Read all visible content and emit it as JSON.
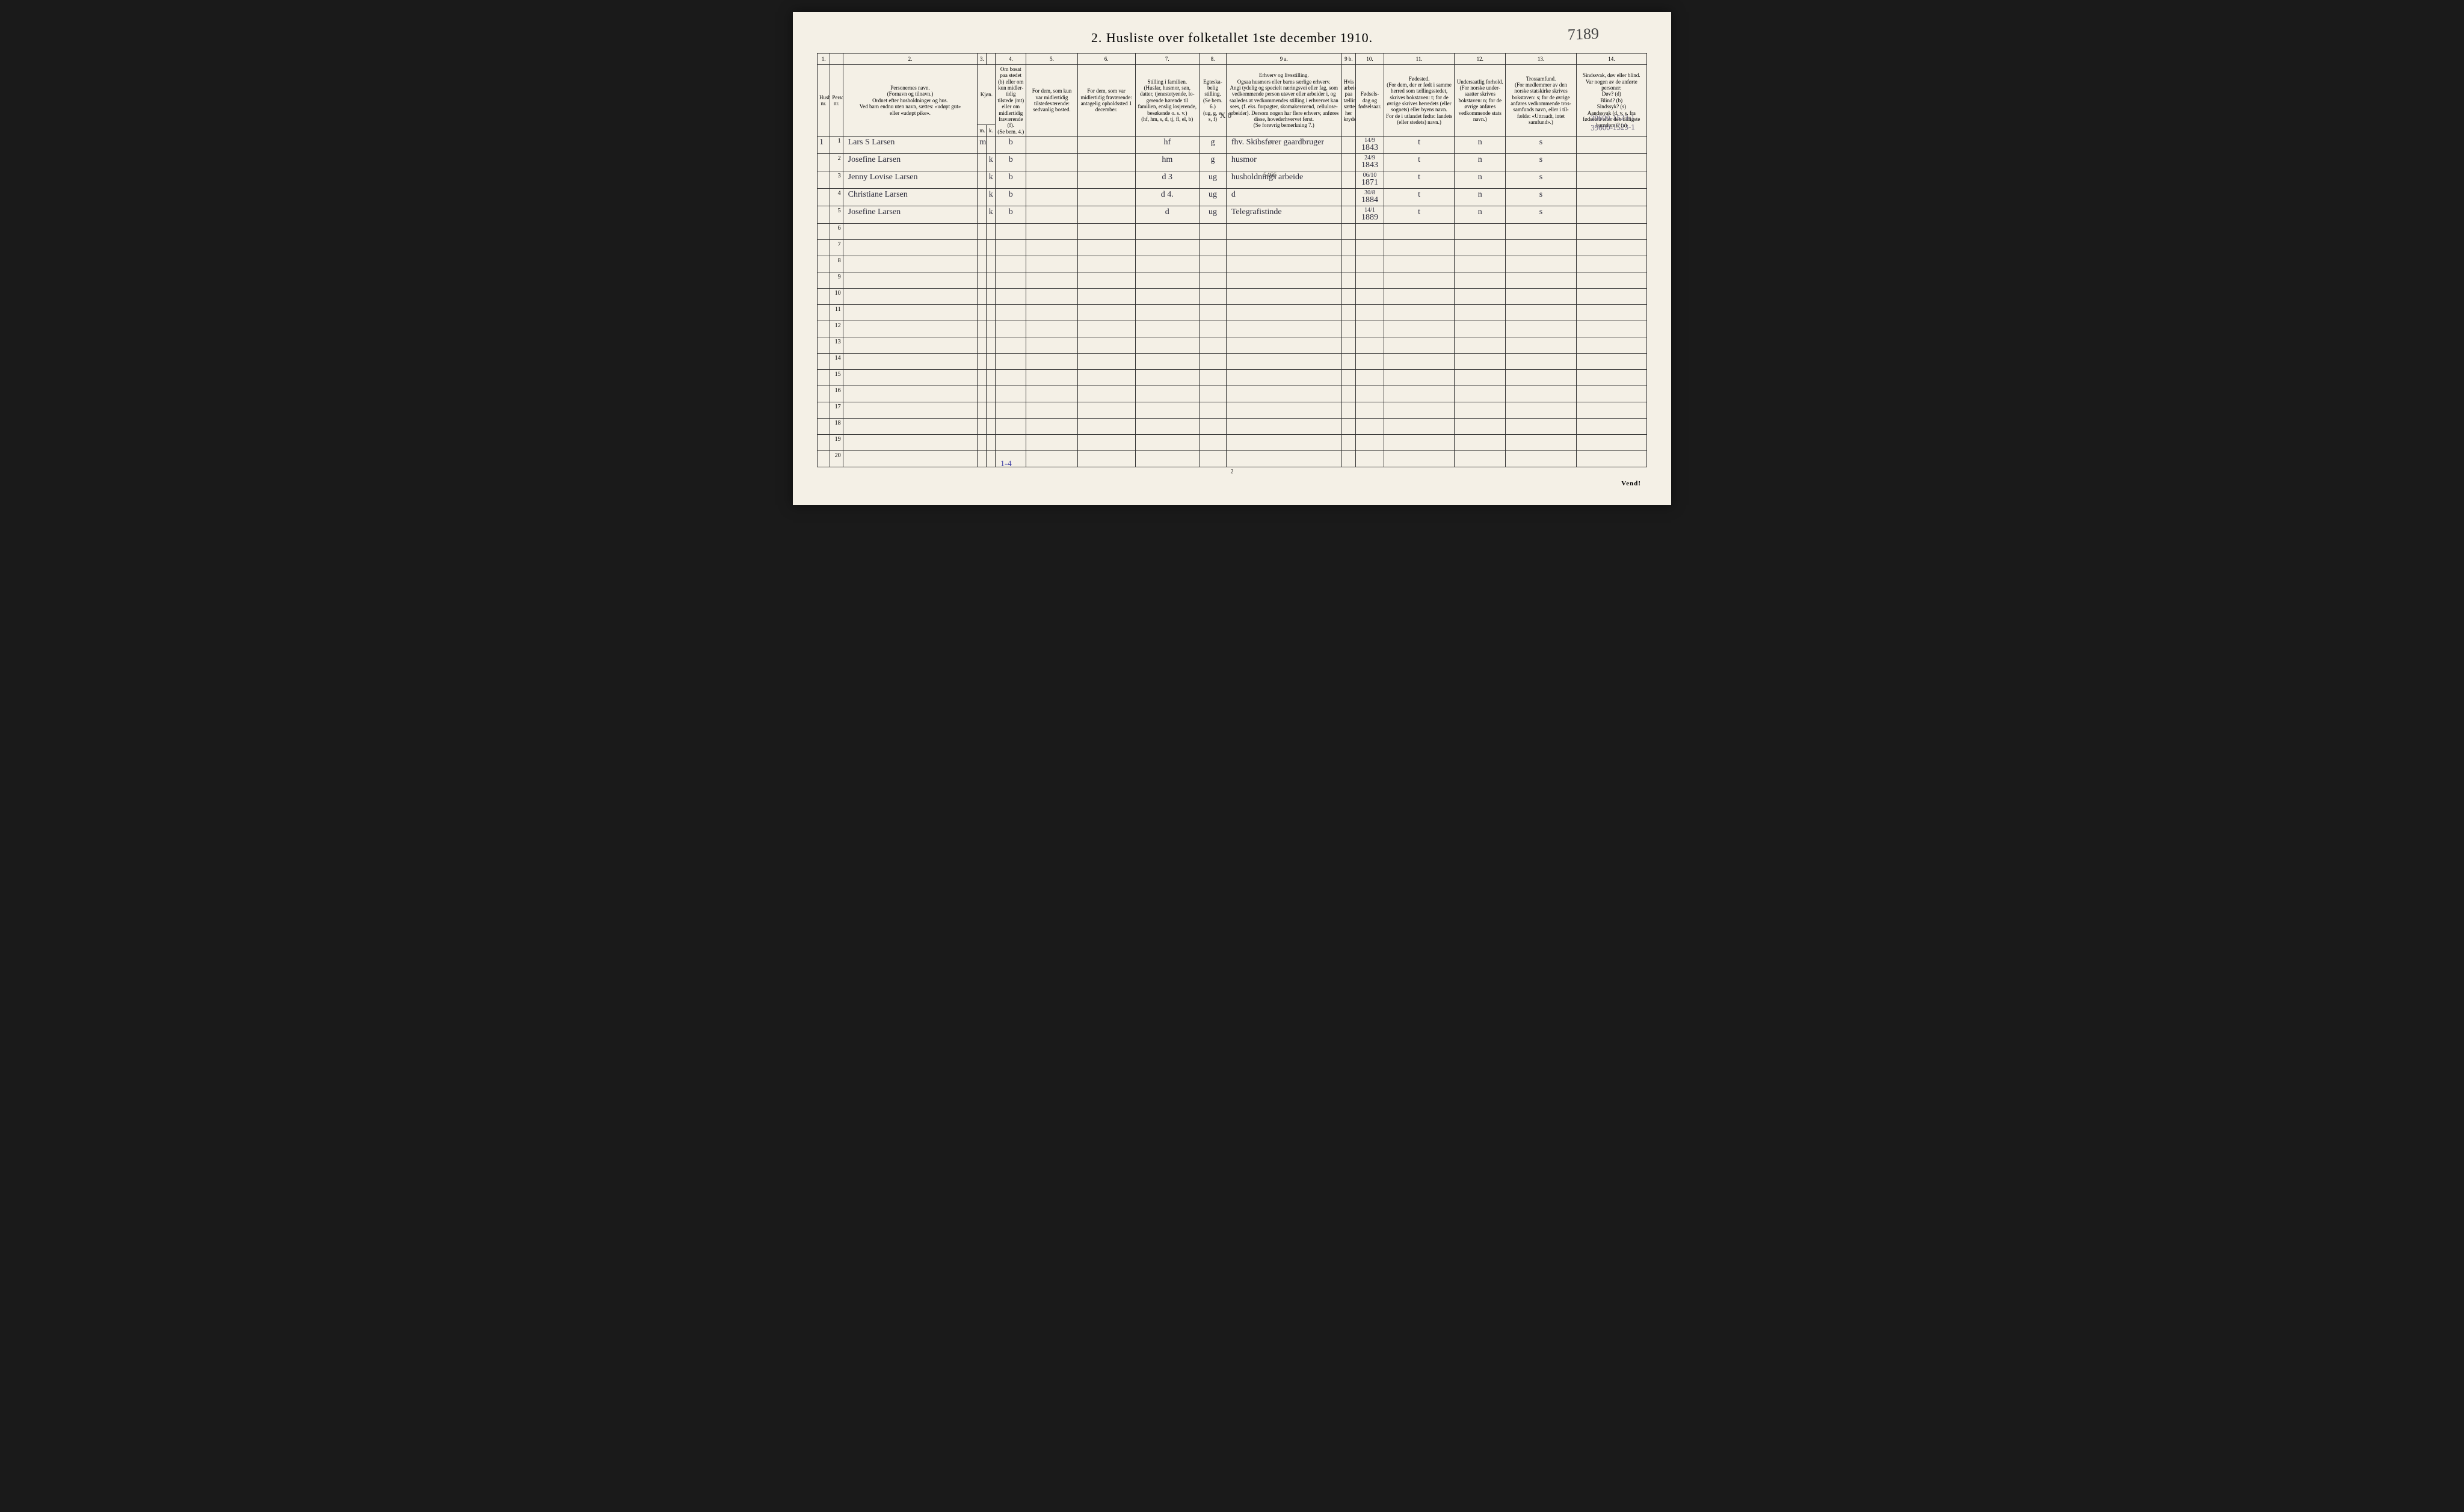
{
  "page": {
    "title": "2.  Husliste over folketallet 1ste december 1910.",
    "handwritten_top_right": "7189",
    "annotation_right_1": "39600-1523-1",
    "annotation_right_2": "39600-1523-1",
    "annotation_bottom_left": "1-4",
    "xo_mark": "X 0",
    "small_number": "5466",
    "page_number_bottom": "2",
    "vend": "Vend!"
  },
  "columns": {
    "nums": [
      "1.",
      "",
      "2.",
      "3.",
      "",
      "4.",
      "5.",
      "6.",
      "7.",
      "8.",
      "9 a.",
      "9 b.",
      "10.",
      "11.",
      "12.",
      "13.",
      "14."
    ],
    "headers": [
      "Husholdningernes nr.",
      "Personernes nr.",
      "Personernes navn.\n(Fornavn og tilnavn.)\nOrdnet efter husholdninger og hus.\nVed barn endnu uten navn, sættes: «udøpt gut»\neller «udøpt pike».",
      "Kjøn.\nMænd.",
      "Kvinder.",
      "Om bosat paa stedet (b) eller om kun midler­tidig tilstede (mt) eller om midler­tidig fra­værende (f).\n(Se bem. 4.)",
      "For dem, som kun var midlertidig tilstede­værende:\nsedvanlig bosted.",
      "For dem, som var midlertidig fraværende:\nantagelig opholdssted 1 december.",
      "Stilling i familien.\n(Husfar, husmor, søn, datter, tjenestetyende, lo­gerende hørende til familien, enslig losjerende, besøkende o. s. v.)\n(hf, hm, s, d, tj, fl, el, b)",
      "Egteska­belig stilling.\n(Se bem. 6.)\n(ug, g, e, s, f)",
      "Erhverv og livsstilling.\nOgsaa husmors eller barns særlige erhverv.\nAngi tydelig og specielt næringsvei eller fag, som vedkommende person utøver eller arbeider i, og saaledes at vedkommendes stilling i erhvervet kan sees, (f. eks. forpagter, skomakersvend, cellulose­arbeider). Dersom nogen har flere erhverv, anføres disse, hovederhvervet først.\n(Se forøvrig bemerkning 7.)",
      "Hvis arbeidsledig paa tællingstiden sættes her kryds.",
      "Fødsels­dag og fødsels­aar.",
      "Fødested.\n(For dem, der er født i samme herred som tællingsstedet, skrives bokstaven: t; for de øvrige skrives herredets (eller sognets) eller byens navn.\nFor de i utlandet fødte: landets (eller stedets) navn.)",
      "Undersaatlig forhold.\n(For norske under­saatter skrives bokstaven: n; for de øvrige anføres vedkom­mende stats navn.)",
      "Trossamfund.\n(For medlemmer av den norske statskirke skrives bokstaven: s; for de øvrige anføres vedkommende tros­samfunds navn, eller i til­fælde: «Uttraadt, intet samfund».)",
      "Sindssvak, døv eller blind.\nVar nogen av de anførte personer:\nDøv? (d)\nBlind? (b)\nSindssyk? (s)\nAandssvak (d. v. s. fra fødselen eller den tid­ligste barndom)? (a)"
    ],
    "sub_mk": [
      "m.",
      "k."
    ]
  },
  "widths": {
    "c1": 20,
    "c1b": 20,
    "c2": 210,
    "c3m": 14,
    "c3k": 14,
    "c4": 48,
    "c5": 80,
    "c6": 90,
    "c7": 100,
    "c8": 42,
    "c9a": 180,
    "c9b": 22,
    "c10": 44,
    "c11": 110,
    "c12": 80,
    "c13": 110,
    "c14": 110
  },
  "rows": [
    {
      "hh": "1",
      "pn": "1",
      "name": "Lars S Larsen",
      "m": "m",
      "k": "",
      "bf": "b",
      "c5": "",
      "c6": "",
      "c7": "hf",
      "c8": "g",
      "c9a": "fhv. Skibsfører gaardbruger",
      "c9b": "",
      "c10": "14/9 1843",
      "c11": "t",
      "c12": "n",
      "c13": "s",
      "c14": ""
    },
    {
      "hh": "",
      "pn": "2",
      "name": "Josefine Larsen",
      "m": "",
      "k": "k",
      "bf": "b",
      "c5": "",
      "c6": "",
      "c7": "hm",
      "c8": "g",
      "c9a": "husmor",
      "c9b": "",
      "c10": "24/9 1843",
      "c11": "t",
      "c12": "n",
      "c13": "s",
      "c14": ""
    },
    {
      "hh": "",
      "pn": "3",
      "name": "Jenny Lovise Larsen",
      "m": "",
      "k": "k",
      "bf": "b",
      "c5": "",
      "c6": "",
      "c7": "d   3",
      "c8": "ug",
      "c9a": "husholdnings arbeide",
      "c9b": "",
      "c10": "06/10 1871",
      "c11": "t",
      "c12": "n",
      "c13": "s",
      "c14": ""
    },
    {
      "hh": "",
      "pn": "4",
      "name": "Christiane Larsen",
      "m": "",
      "k": "k",
      "bf": "b",
      "c5": "",
      "c6": "",
      "c7": "d   4.",
      "c8": "ug",
      "c9a": "d",
      "c9b": "",
      "c10": "30/8 1884",
      "c11": "t",
      "c12": "n",
      "c13": "s",
      "c14": ""
    },
    {
      "hh": "",
      "pn": "5",
      "name": "Josefine Larsen",
      "m": "",
      "k": "k",
      "bf": "b",
      "c5": "",
      "c6": "",
      "c7": "d",
      "c8": "ug",
      "c9a": "Telegrafistinde",
      "c9b": "",
      "c10": "14/1 1889",
      "c11": "t",
      "c12": "n",
      "c13": "s",
      "c14": ""
    }
  ],
  "blank_row_count": 15,
  "printed_row_nums": [
    "1",
    "2",
    "3",
    "4",
    "5",
    "6",
    "7",
    "8",
    "9",
    "10",
    "11",
    "12",
    "13",
    "14",
    "15",
    "16",
    "17",
    "18",
    "19",
    "20"
  ],
  "style": {
    "page_bg": "#f4f0e6",
    "outer_bg": "#1a1a1a",
    "border_color": "#333",
    "handwriting_color": "#2a2a3a",
    "annotation_pencil": "#6a6580",
    "annotation_blue": "#4848a8"
  }
}
